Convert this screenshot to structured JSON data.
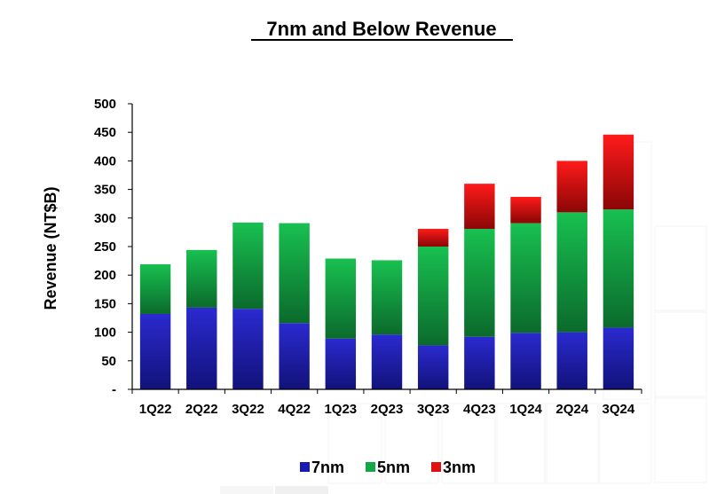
{
  "chart_data": {
    "type": "bar",
    "stacked": true,
    "title": "7nm and Below Revenue",
    "xlabel": "",
    "ylabel": "Revenue (NT$B)",
    "ylim": [
      0,
      500
    ],
    "yticks": [
      "-",
      "50",
      "100",
      "150",
      "200",
      "250",
      "300",
      "350",
      "400",
      "450",
      "500"
    ],
    "ytick_values": [
      0,
      50,
      100,
      150,
      200,
      250,
      300,
      350,
      400,
      450,
      500
    ],
    "categories": [
      "1Q22",
      "2Q22",
      "3Q22",
      "4Q22",
      "1Q23",
      "2Q23",
      "3Q23",
      "4Q23",
      "1Q24",
      "2Q24",
      "3Q24"
    ],
    "series": [
      {
        "name": "7nm",
        "color": "#1a1ab0",
        "values": [
          132,
          143,
          141,
          116,
          89,
          96,
          77,
          92,
          99,
          100,
          108
        ]
      },
      {
        "name": "5nm",
        "color": "#12a845",
        "values": [
          87,
          101,
          151,
          175,
          140,
          130,
          173,
          189,
          192,
          210,
          207
        ]
      },
      {
        "name": "3nm",
        "color": "#e01010",
        "values": [
          0,
          0,
          0,
          0,
          0,
          0,
          31,
          79,
          46,
          90,
          131
        ]
      }
    ],
    "legend_position": "bottom",
    "grid": false
  }
}
